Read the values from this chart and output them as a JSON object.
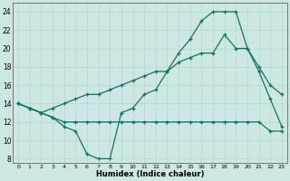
{
  "xlabel": "Humidex (Indice chaleur)",
  "background_color": "#cde8e4",
  "grid_color": "#b0d8d0",
  "line_color": "#1a6e60",
  "xlim": [
    -0.5,
    23.5
  ],
  "ylim": [
    7.5,
    25
  ],
  "yticks": [
    8,
    10,
    12,
    14,
    16,
    18,
    20,
    22,
    24
  ],
  "xticks": [
    0,
    1,
    2,
    3,
    4,
    5,
    6,
    7,
    8,
    9,
    10,
    11,
    12,
    13,
    14,
    15,
    16,
    17,
    18,
    19,
    20,
    21,
    22,
    23
  ],
  "line1_x": [
    0,
    1,
    2,
    3,
    4,
    5,
    6,
    7,
    8,
    9,
    10,
    11,
    12,
    13,
    14,
    15,
    16,
    17,
    18,
    19,
    20,
    21,
    22,
    23
  ],
  "line1_y": [
    14,
    13.5,
    13,
    12.5,
    11.5,
    11,
    8.5,
    8,
    8,
    13,
    13.5,
    15,
    15.5,
    17.5,
    19.5,
    21,
    23,
    24,
    24,
    24,
    20,
    17.5,
    14.5,
    11.5
  ],
  "line2_x": [
    0,
    1,
    2,
    3,
    4,
    5,
    6,
    7,
    8,
    9,
    10,
    11,
    12,
    13,
    14,
    15,
    16,
    17,
    18,
    19,
    20,
    21,
    22,
    23
  ],
  "line2_y": [
    14,
    13.5,
    13,
    12.5,
    12,
    12,
    12,
    12,
    12,
    12,
    12,
    12,
    12,
    12,
    12,
    12,
    12,
    12,
    12,
    12,
    12,
    12,
    11,
    11
  ],
  "line3_x": [
    0,
    1,
    2,
    3,
    4,
    5,
    6,
    7,
    8,
    9,
    10,
    11,
    12,
    13,
    14,
    15,
    16,
    17,
    18,
    19,
    20,
    21,
    22,
    23
  ],
  "line3_y": [
    14,
    13.5,
    13,
    13.5,
    14,
    14.5,
    15,
    15,
    15.5,
    16,
    16.5,
    17,
    17.5,
    17.5,
    18.5,
    19,
    19.5,
    19.5,
    21.5,
    20,
    20,
    18,
    16,
    15
  ]
}
